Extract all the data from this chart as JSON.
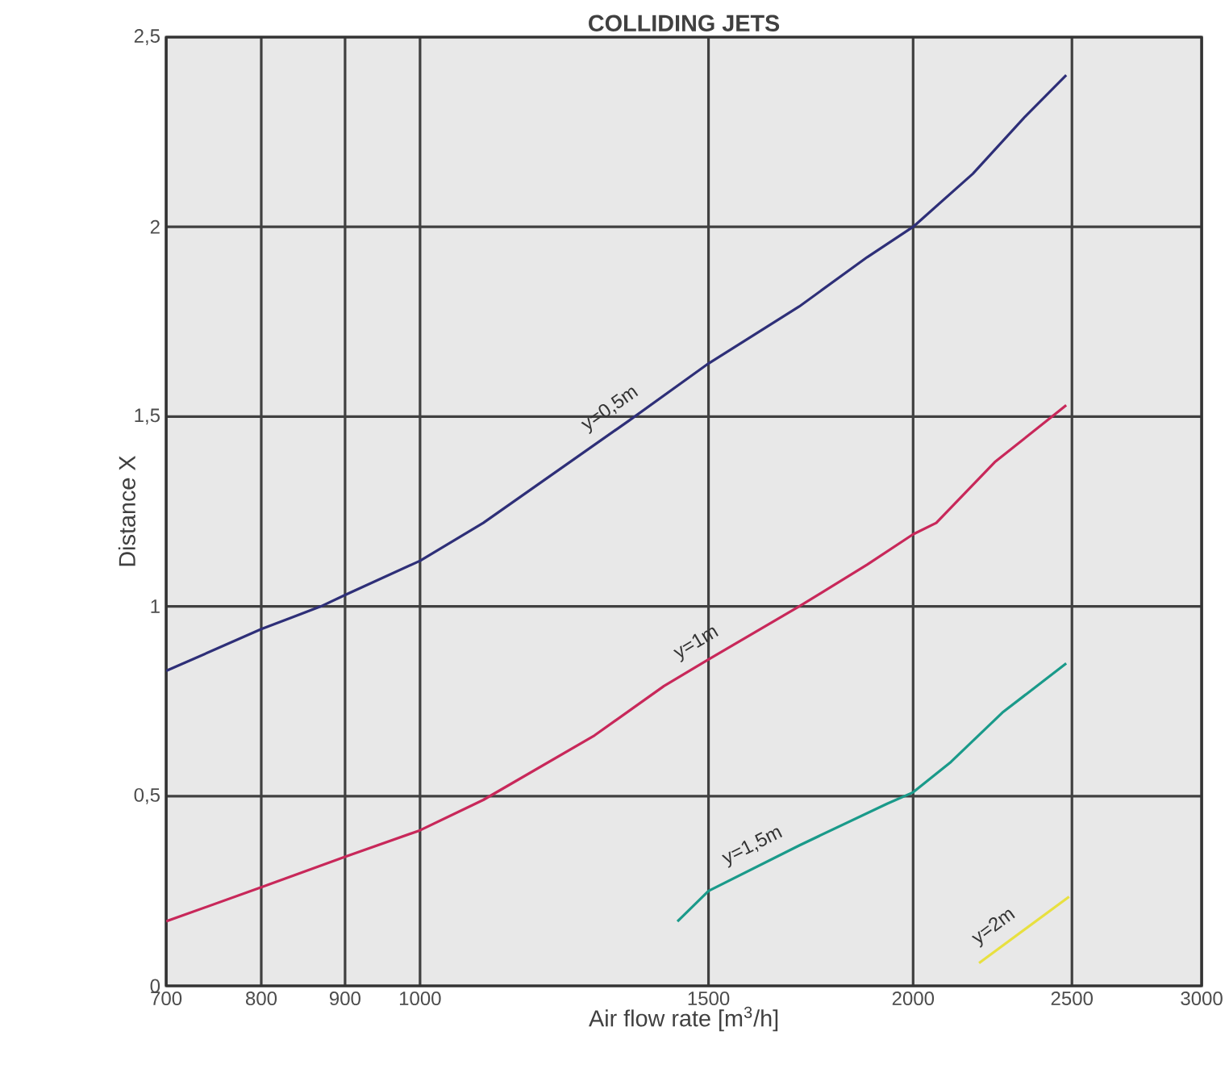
{
  "chart_data": {
    "type": "line",
    "title": "COLLIDING JETS",
    "xlabel": "Air flow rate [m$^{3}$/h]",
    "ylabel": "Distance X",
    "log": "x",
    "grid": true,
    "marker": "none",
    "line_style": "solid",
    "xlim": [
      700,
      3000
    ],
    "ylim": [
      0,
      2.5
    ],
    "xticks": [
      700,
      800,
      900,
      1000,
      1500,
      2000,
      2500,
      3000
    ],
    "yticks": [
      0,
      {
        "value": 0.5,
        "label": "0,5"
      },
      1,
      {
        "value": 1.5,
        "label": "1,5"
      },
      2,
      {
        "value": 2.5,
        "label": "2,5"
      }
    ],
    "series": [
      {
        "name": "y=0,5m",
        "color": "#2e2f78",
        "x": [
          700,
          800,
          870,
          900,
          1000,
          1093,
          1342,
          1500,
          1704,
          1875,
          2000,
          2175,
          2340,
          2480
        ],
        "values": [
          0.83,
          0.94,
          1.0,
          1.03,
          1.12,
          1.22,
          1.49,
          1.64,
          1.79,
          1.92,
          2.0,
          2.14,
          2.29,
          2.4
        ]
      },
      {
        "name": "y=1m",
        "color": "#c8285a",
        "x": [
          700,
          800,
          900,
          1000,
          1093,
          1278,
          1409,
          1500,
          1704,
          1875,
          2000,
          2066,
          2243,
          2480
        ],
        "values": [
          0.17,
          0.26,
          0.34,
          0.41,
          0.49,
          0.66,
          0.79,
          0.86,
          1.0,
          1.11,
          1.19,
          1.22,
          1.38,
          1.53
        ]
      },
      {
        "name": "y=1,5m",
        "color": "#1a9a8a",
        "x": [
          1436,
          1500,
          1704,
          1928,
          2000,
          2109,
          2267,
          2480
        ],
        "values": [
          0.17,
          0.25,
          0.37,
          0.48,
          0.51,
          0.59,
          0.72,
          0.85
        ]
      },
      {
        "name": "y=2m",
        "color": "#e8e040",
        "x": [
          2194,
          2490
        ],
        "values": [
          0.06,
          0.235
        ]
      }
    ]
  }
}
